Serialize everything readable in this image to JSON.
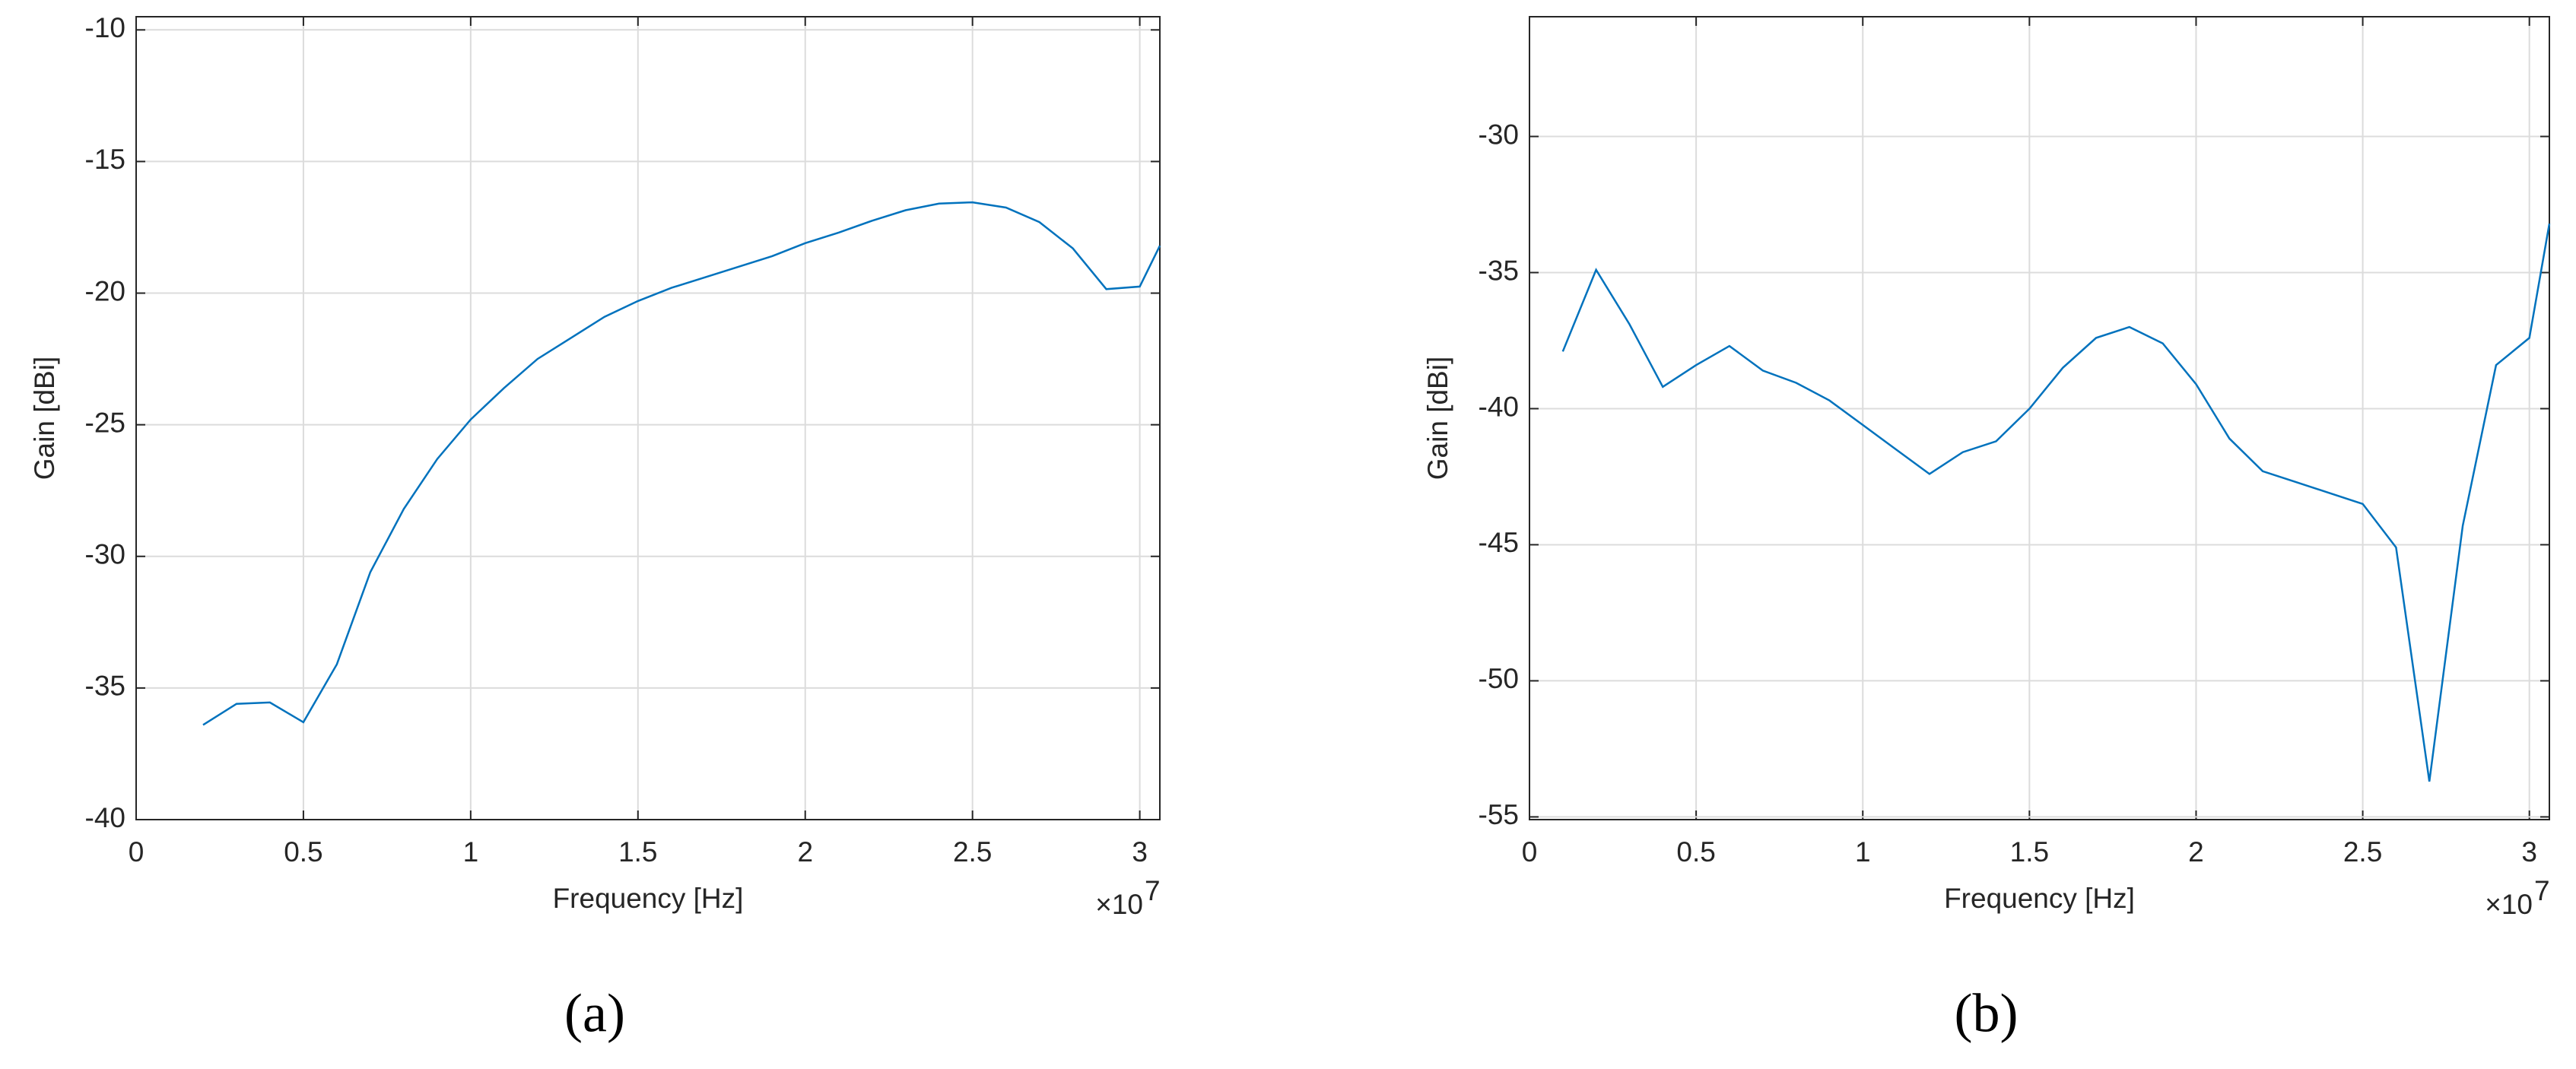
{
  "chart_data": [
    {
      "type": "line",
      "panel_label": "(a)",
      "xlabel": "Frequency [Hz]",
      "ylabel": "Gain [dBi]",
      "x_multiplier": {
        "base": "×10",
        "power": "7"
      },
      "color": "#0072bd",
      "grid": true,
      "xlim": [
        0,
        3.06
      ],
      "xticks": [
        0,
        0.5,
        1,
        1.5,
        2,
        2.5,
        3
      ],
      "ylim": [
        -40,
        -9.5
      ],
      "yticks": [
        -40,
        -35,
        -30,
        -25,
        -20,
        -15,
        -10
      ],
      "x": [
        0.2,
        0.3,
        0.4,
        0.5,
        0.6,
        0.7,
        0.8,
        0.9,
        1.0,
        1.1,
        1.2,
        1.3,
        1.4,
        1.5,
        1.6,
        1.7,
        1.8,
        1.9,
        2.0,
        2.1,
        2.2,
        2.3,
        2.4,
        2.5,
        2.6,
        2.7,
        2.8,
        2.9,
        3.0,
        3.06
      ],
      "values": [
        -36.4,
        -35.6,
        -35.55,
        -36.3,
        -34.1,
        -30.6,
        -28.2,
        -26.3,
        -24.8,
        -23.6,
        -22.5,
        -21.7,
        -20.9,
        -20.3,
        -19.8,
        -19.4,
        -19.0,
        -18.6,
        -18.1,
        -17.7,
        -17.25,
        -16.85,
        -16.6,
        -16.55,
        -16.75,
        -17.3,
        -18.3,
        -19.85,
        -19.75,
        -18.2
      ]
    },
    {
      "type": "line",
      "panel_label": "(b)",
      "xlabel": "Frequency [Hz]",
      "ylabel": "Gain [dBi]",
      "x_multiplier": {
        "base": "×10",
        "power": "7"
      },
      "color": "#0072bd",
      "grid": true,
      "xlim": [
        0,
        3.06
      ],
      "xticks": [
        0,
        0.5,
        1,
        1.5,
        2,
        2.5,
        3
      ],
      "ylim": [
        -55.1,
        -25.6
      ],
      "yticks": [
        -55,
        -50,
        -45,
        -40,
        -35,
        -30
      ],
      "x": [
        0.1,
        0.2,
        0.3,
        0.4,
        0.5,
        0.6,
        0.7,
        0.8,
        0.9,
        1.0,
        1.1,
        1.2,
        1.3,
        1.4,
        1.5,
        1.6,
        1.7,
        1.8,
        1.9,
        2.0,
        2.1,
        2.2,
        2.3,
        2.4,
        2.5,
        2.6,
        2.7,
        2.8,
        2.9,
        3.0,
        3.06
      ],
      "values": [
        -37.9,
        -34.9,
        -36.9,
        -39.2,
        -38.4,
        -37.7,
        -38.6,
        -39.05,
        -39.7,
        -40.6,
        -41.5,
        -42.4,
        -41.6,
        -41.2,
        -40.0,
        -38.5,
        -37.4,
        -37.0,
        -37.6,
        -39.1,
        -41.1,
        -42.3,
        -42.7,
        -43.1,
        -43.5,
        -45.1,
        -53.7,
        -44.3,
        -38.4,
        -37.4,
        -33.2
      ]
    }
  ]
}
